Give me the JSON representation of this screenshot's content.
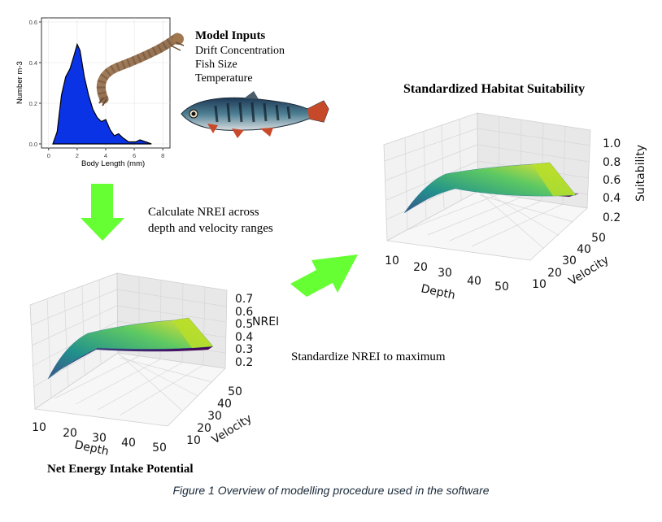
{
  "model_inputs": {
    "title": "Model Inputs",
    "items": [
      "Drift Concentration",
      "Fish Size",
      "Temperature"
    ]
  },
  "steps": {
    "calculate_line1": "Calculate NREI across",
    "calculate_line2": "depth and velocity ranges",
    "standardize": "Standardize NREI to maximum"
  },
  "caption": "Figure 1 Overview of modelling procedure used in the software",
  "arrow_color": "#66ff33",
  "surface_colors": [
    "#440154",
    "#3b528b",
    "#21918c",
    "#5ec962",
    "#fde725"
  ],
  "density_fill": "#0b33e6",
  "chart_data": [
    {
      "type": "area",
      "xlabel": "Body Length (mm)",
      "ylabel": "Number m-3",
      "x_ticks": [
        "0",
        "2",
        "4",
        "6",
        "8"
      ],
      "y_ticks": [
        "0.0",
        "0.2",
        "0.4",
        "0.6"
      ],
      "xlim": [
        -0.5,
        8.5
      ],
      "ylim": [
        -0.02,
        0.62
      ],
      "points": [
        [
          0.3,
          0.0
        ],
        [
          0.6,
          0.06
        ],
        [
          0.9,
          0.24
        ],
        [
          1.2,
          0.33
        ],
        [
          1.5,
          0.37
        ],
        [
          1.8,
          0.44
        ],
        [
          2.0,
          0.49
        ],
        [
          2.2,
          0.46
        ],
        [
          2.5,
          0.33
        ],
        [
          2.8,
          0.24
        ],
        [
          3.1,
          0.17
        ],
        [
          3.4,
          0.13
        ],
        [
          3.7,
          0.11
        ],
        [
          4.0,
          0.12
        ],
        [
          4.3,
          0.07
        ],
        [
          4.6,
          0.04
        ],
        [
          4.9,
          0.05
        ],
        [
          5.2,
          0.03
        ],
        [
          5.6,
          0.01
        ],
        [
          6.1,
          0.01
        ],
        [
          6.4,
          0.02
        ],
        [
          6.8,
          0.01
        ],
        [
          7.2,
          0.0
        ]
      ]
    },
    {
      "type": "surface",
      "title": "Standardized Habitat Suitability",
      "xlabel": "Depth",
      "ylabel": "Velocity",
      "zlabel": "Suitability",
      "x_ticks": [
        "10",
        "20",
        "30",
        "40",
        "50"
      ],
      "y_ticks": [
        "10",
        "20",
        "30",
        "40",
        "50"
      ],
      "z_ticks": [
        "0.2",
        "0.4",
        "0.6",
        "0.8",
        "1.0"
      ]
    },
    {
      "type": "surface",
      "title": "Net Energy Intake Potential",
      "xlabel": "Depth",
      "ylabel": "Velocity",
      "zlabel": "NREI",
      "x_ticks": [
        "10",
        "20",
        "30",
        "40",
        "50"
      ],
      "y_ticks": [
        "10",
        "20",
        "30",
        "40",
        "50"
      ],
      "z_ticks": [
        "0.2",
        "0.3",
        "0.4",
        "0.5",
        "0.6",
        "0.7"
      ]
    }
  ]
}
